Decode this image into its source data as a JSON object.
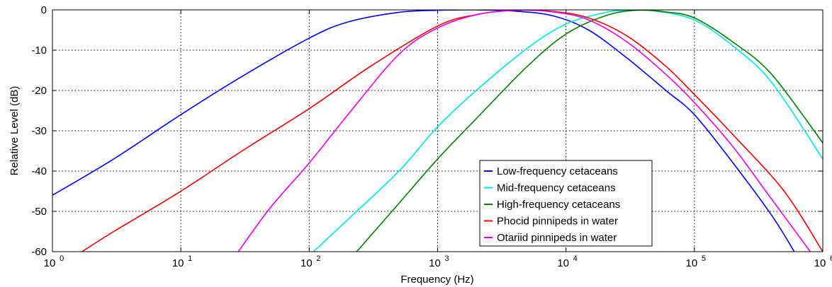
{
  "chart_data": {
    "type": "line",
    "title": "",
    "xlabel": "Frequency (Hz)",
    "ylabel": "Relative Level (dB)",
    "xscale": "log",
    "xlim": [
      1,
      1000000
    ],
    "ylim": [
      -60,
      0
    ],
    "grid": true,
    "legend_position": "bottom-right",
    "x_ticks": [
      {
        "value": 1,
        "base": "10",
        "exp": "0"
      },
      {
        "value": 10,
        "base": "10",
        "exp": "1"
      },
      {
        "value": 100,
        "base": "10",
        "exp": "2"
      },
      {
        "value": 1000,
        "base": "10",
        "exp": "3"
      },
      {
        "value": 10000,
        "base": "10",
        "exp": "4"
      },
      {
        "value": 100000,
        "base": "10",
        "exp": "5"
      },
      {
        "value": 1000000,
        "base": "10",
        "exp": "6"
      }
    ],
    "y_ticks": [
      {
        "value": 0,
        "label": "0"
      },
      {
        "value": -10,
        "label": "-10"
      },
      {
        "value": -20,
        "label": "-20"
      },
      {
        "value": -30,
        "label": "-30"
      },
      {
        "value": -40,
        "label": "-40"
      },
      {
        "value": -50,
        "label": "-50"
      },
      {
        "value": -60,
        "label": "-60"
      }
    ],
    "series": [
      {
        "name": "Low-frequency cetaceans",
        "color": "#0000ff",
        "x": [
          1,
          3,
          10,
          30,
          100,
          200,
          500,
          1000,
          2000,
          4000,
          8000,
          15000,
          30000,
          60000,
          100000,
          200000,
          400000,
          600000
        ],
        "y": [
          -46,
          -37,
          -26,
          -16.5,
          -7,
          -3,
          -0.6,
          -0.1,
          0,
          -0.3,
          -1.5,
          -5,
          -12,
          -20,
          -26,
          -38,
          -51,
          -60
        ]
      },
      {
        "name": "Mid-frequency cetaceans",
        "color": "#00e5e5",
        "x": [
          100,
          200,
          500,
          1000,
          2000,
          5000,
          10000,
          20000,
          30000,
          50000,
          100000,
          200000,
          400000,
          1000000
        ],
        "y": [
          -61,
          -52,
          -40,
          -29,
          -20,
          -9.5,
          -3.5,
          -0.7,
          -0.1,
          -0.3,
          -2.5,
          -9,
          -18,
          -37
        ]
      },
      {
        "name": "High-frequency cetaceans",
        "color": "#008000",
        "x": [
          220,
          500,
          1000,
          2000,
          5000,
          10000,
          20000,
          35000,
          60000,
          100000,
          200000,
          400000,
          1000000
        ],
        "y": [
          -61,
          -48,
          -37,
          -27,
          -14,
          -6,
          -1.5,
          -0.1,
          -0.5,
          -2,
          -8,
          -16,
          -33
        ]
      },
      {
        "name": "Phocid pinnipeds in water",
        "color": "#ee0000",
        "x": [
          1.7,
          3,
          10,
          30,
          100,
          300,
          1000,
          2000,
          4000,
          8000,
          15000,
          30000,
          60000,
          100000,
          200000,
          500000,
          1000000
        ],
        "y": [
          -60,
          -55,
          -45,
          -35,
          -24.5,
          -14,
          -4,
          -1.2,
          -0.1,
          -0.4,
          -2,
          -6.5,
          -14,
          -21,
          -31,
          -45,
          -60
        ]
      },
      {
        "name": "Otariid pinnipeds in water",
        "color": "#ee00ee",
        "x": [
          28,
          50,
          100,
          200,
          500,
          1000,
          2000,
          4000,
          8000,
          15000,
          30000,
          60000,
          100000,
          200000,
          400000,
          800000
        ],
        "y": [
          -60,
          -49,
          -38,
          -26,
          -11,
          -4.5,
          -1.2,
          -0.1,
          -0.5,
          -2.5,
          -8,
          -16,
          -23,
          -34,
          -47,
          -60
        ]
      }
    ]
  }
}
